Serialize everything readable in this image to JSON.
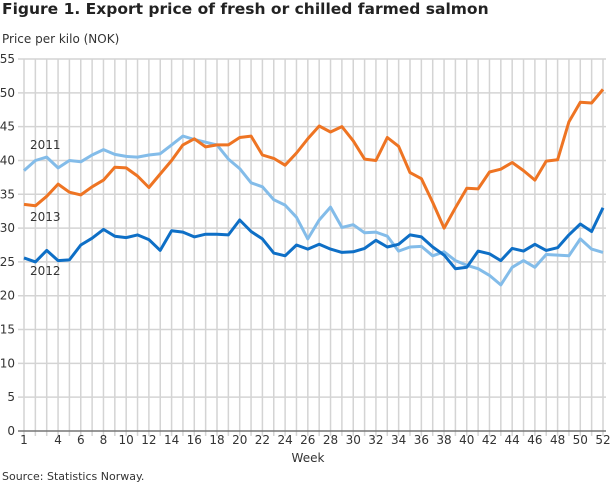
{
  "chart_data": {
    "type": "line",
    "title": "Figure 1. Export price of fresh or chilled farmed salmon",
    "ylabel": "Price per kilo (NOK)",
    "xlabel": "Week",
    "source": "Source: Statistics Norway.",
    "ylim": [
      0,
      55
    ],
    "yticks": [
      0,
      5,
      10,
      15,
      20,
      25,
      30,
      35,
      40,
      45,
      50,
      55
    ],
    "xlim": [
      1,
      52
    ],
    "xticks": [
      1,
      4,
      6,
      8,
      10,
      12,
      14,
      16,
      18,
      20,
      22,
      24,
      26,
      28,
      30,
      32,
      34,
      36,
      38,
      40,
      42,
      44,
      46,
      48,
      50,
      52
    ],
    "grid": true,
    "series": [
      {
        "name": "2011",
        "color": "#83bce9",
        "values": [
          38.5,
          40,
          40.5,
          38.9,
          40,
          39.8,
          40.8,
          41.6,
          40.9,
          40.6,
          40.5,
          40.8,
          41,
          42.3,
          43.6,
          43.1,
          42.7,
          42.3,
          40.2,
          38.8,
          36.7,
          36.1,
          34.2,
          33.4,
          31.6,
          28.4,
          31.2,
          33.1,
          30.1,
          30.5,
          29.3,
          29.4,
          28.8,
          26.6,
          27.2,
          27.3,
          25.9,
          26.5,
          25.2,
          24.5,
          24,
          23,
          21.6,
          24.2,
          25.2,
          24.2,
          26.1,
          26,
          25.9,
          28.4,
          26.9,
          26.4
        ]
      },
      {
        "name": "2012",
        "color": "#0e6fc6",
        "values": [
          25.6,
          25,
          26.7,
          25.2,
          25.3,
          27.5,
          28.5,
          29.8,
          28.8,
          28.6,
          29,
          28.3,
          26.7,
          29.6,
          29.4,
          28.7,
          29.1,
          29.1,
          29,
          31.2,
          29.5,
          28.4,
          26.3,
          25.9,
          27.5,
          26.9,
          27.6,
          26.9,
          26.4,
          26.5,
          27,
          28.2,
          27.2,
          27.6,
          29,
          28.7,
          27.2,
          26,
          24,
          24.2,
          26.6,
          26.2,
          25.2,
          27,
          26.6,
          27.6,
          26.7,
          27.1,
          29,
          30.6,
          29.5,
          33
        ]
      },
      {
        "name": "2013",
        "color": "#ee7423",
        "values": [
          33.5,
          33.3,
          34.7,
          36.5,
          35.3,
          34.9,
          36.1,
          37.1,
          39,
          38.9,
          37.7,
          36,
          38,
          40,
          42.3,
          43.2,
          42,
          42.3,
          42.3,
          43.4,
          43.6,
          40.8,
          40.3,
          39.3,
          41.1,
          43.2,
          45.1,
          44.2,
          45,
          42.9,
          40.2,
          40,
          43.4,
          42.1,
          38.2,
          37.3,
          33.8,
          30,
          33,
          35.9,
          35.8,
          38.3,
          38.7,
          39.7,
          38.5,
          37.1,
          39.9,
          40.1,
          45.7,
          48.6,
          48.5,
          50.5
        ]
      }
    ]
  }
}
